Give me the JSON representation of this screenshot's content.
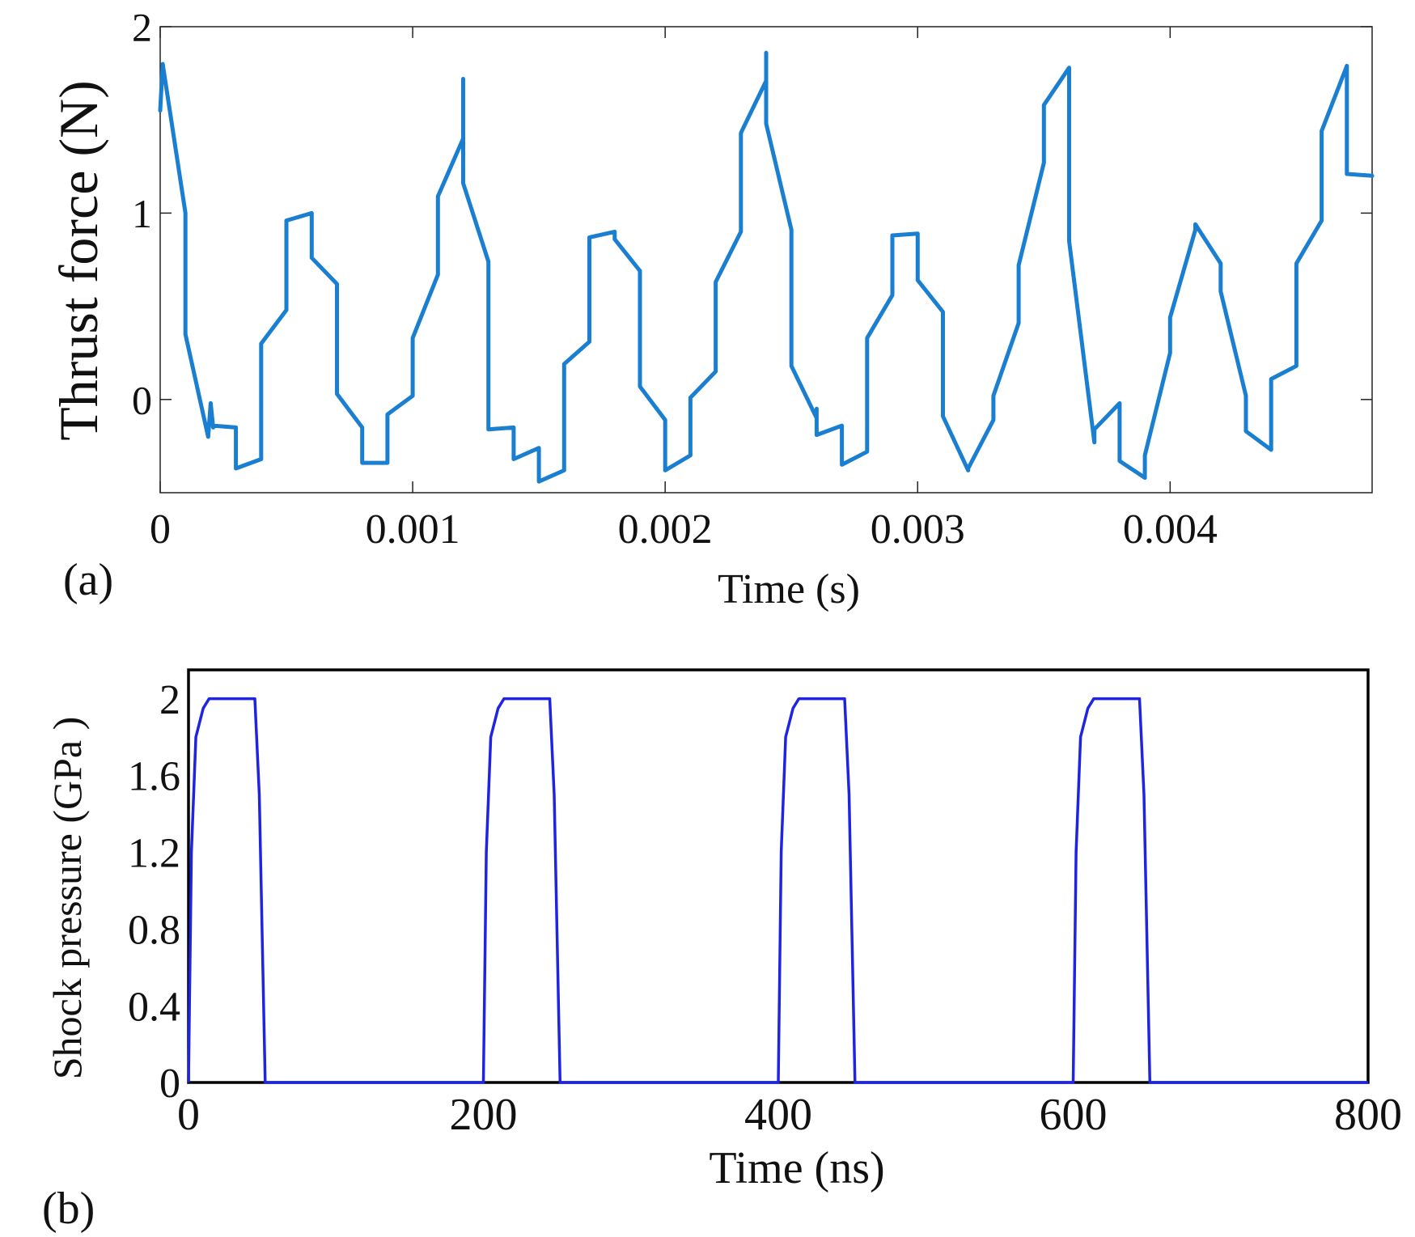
{
  "chart_data": [
    {
      "type": "line",
      "panel_label": "(a)",
      "title": "",
      "xlabel": "Time (s)",
      "ylabel": "Thrust force (N)",
      "xlim": [
        0,
        0.0048
      ],
      "ylim": [
        -0.5,
        2
      ],
      "x_ticks": [
        0,
        0.001,
        0.002,
        0.003,
        0.004
      ],
      "x_tick_labels": [
        "0",
        "0.001",
        "0.002",
        "0.003",
        "0.004"
      ],
      "y_ticks": [
        0,
        1,
        2
      ],
      "y_tick_labels": [
        "0",
        "1",
        "2"
      ],
      "grid": false,
      "colors": {
        "line": "#1a7fd0",
        "axis": "#222222"
      },
      "series": [
        {
          "name": "Thrust force",
          "x": [
            0,
            1e-05,
            0.0001,
            0.0001,
            0.00019,
            0.0002,
            0.00021,
            0.00021,
            0.0003,
            0.0003,
            0.0004,
            0.0004,
            0.0005,
            0.0005,
            0.0006,
            0.0006,
            0.0007,
            0.0007,
            0.0008,
            0.0008,
            0.0009,
            0.0009,
            0.001,
            0.001,
            0.0011,
            0.0011,
            0.0012,
            0.0012,
            0.0012,
            0.0013,
            0.0013,
            0.0014,
            0.0014,
            0.0015,
            0.0015,
            0.0016,
            0.0016,
            0.0017,
            0.0017,
            0.0018,
            0.0018,
            0.0019,
            0.0019,
            0.002,
            0.002,
            0.0021,
            0.0021,
            0.0022,
            0.0022,
            0.0023,
            0.0023,
            0.0024,
            0.0024,
            0.0024,
            0.0025,
            0.0025,
            0.0026,
            0.0026,
            0.0026,
            0.0027,
            0.0027,
            0.0028,
            0.0028,
            0.0029,
            0.0029,
            0.003,
            0.003,
            0.0031,
            0.0031,
            0.0032,
            0.0032,
            0.0033,
            0.0033,
            0.0034,
            0.0034,
            0.0035,
            0.0035,
            0.0036,
            0.0036,
            0.0036,
            0.0037,
            0.0037,
            0.0038,
            0.0038,
            0.0039,
            0.0039,
            0.004,
            0.004,
            0.0041,
            0.0041,
            0.0042,
            0.0042,
            0.0043,
            0.0043,
            0.0044,
            0.0044,
            0.0045,
            0.0045,
            0.0046,
            0.0046,
            0.0047,
            0.0047,
            0.0048,
            0.0048
          ],
          "y": [
            1.55,
            1.8,
            1.0,
            0.35,
            -0.2,
            -0.02,
            -0.15,
            -0.14,
            -0.15,
            -0.37,
            -0.32,
            0.3,
            0.48,
            0.96,
            1.0,
            0.76,
            0.62,
            0.03,
            -0.15,
            -0.34,
            -0.34,
            -0.08,
            0.02,
            0.33,
            0.67,
            1.09,
            1.4,
            1.72,
            1.16,
            0.74,
            -0.16,
            -0.15,
            -0.32,
            -0.26,
            -0.44,
            -0.38,
            0.19,
            0.31,
            0.87,
            0.9,
            0.86,
            0.69,
            0.07,
            -0.11,
            -0.38,
            -0.3,
            0.01,
            0.15,
            0.63,
            0.9,
            1.43,
            1.71,
            1.86,
            1.48,
            0.91,
            0.18,
            -0.1,
            -0.05,
            -0.19,
            -0.14,
            -0.35,
            -0.28,
            0.33,
            0.56,
            0.88,
            0.89,
            0.64,
            0.47,
            -0.09,
            -0.38,
            -0.37,
            -0.11,
            0.02,
            0.41,
            0.72,
            1.27,
            1.58,
            1.78,
            1.0,
            0.85,
            -0.23,
            -0.16,
            -0.02,
            -0.33,
            -0.42,
            -0.3,
            0.25,
            0.44,
            0.91,
            0.94,
            0.73,
            0.58,
            0.02,
            -0.17,
            -0.27,
            0.11,
            0.18,
            0.73,
            0.96,
            1.44,
            1.79,
            1.21,
            1.2,
            1.2
          ]
        }
      ]
    },
    {
      "type": "line",
      "panel_label": "(b)",
      "title": "",
      "xlabel": "Time (ns)",
      "ylabel": "Shock pressure (GPa )",
      "xlim": [
        0,
        800
      ],
      "ylim": [
        0,
        2.15
      ],
      "x_ticks": [
        0,
        200,
        400,
        600,
        800
      ],
      "x_tick_labels": [
        "0",
        "200",
        "400",
        "600",
        "800"
      ],
      "y_ticks": [
        0,
        0.4,
        0.8,
        1.2,
        1.6,
        2
      ],
      "y_tick_labels": [
        "0",
        "0.4",
        "0.8",
        "1.2",
        "1.6",
        "2"
      ],
      "grid": false,
      "colors": {
        "line": "#1f24e0",
        "axis": "#000000"
      },
      "series": [
        {
          "name": "Shock pressure",
          "x": [
            0,
            2,
            5,
            10,
            14,
            45,
            48,
            52,
            200,
            202,
            205,
            210,
            214,
            245,
            248,
            252,
            400,
            402,
            405,
            410,
            414,
            445,
            448,
            452,
            600,
            602,
            605,
            610,
            614,
            645,
            648,
            652,
            800
          ],
          "y": [
            0,
            1.2,
            1.8,
            1.95,
            2,
            2,
            1.5,
            0,
            0,
            1.2,
            1.8,
            1.95,
            2,
            2,
            1.5,
            0,
            0,
            1.2,
            1.8,
            1.95,
            2,
            2,
            1.5,
            0,
            0,
            1.2,
            1.8,
            1.95,
            2,
            2,
            1.5,
            0,
            0
          ]
        }
      ]
    }
  ]
}
